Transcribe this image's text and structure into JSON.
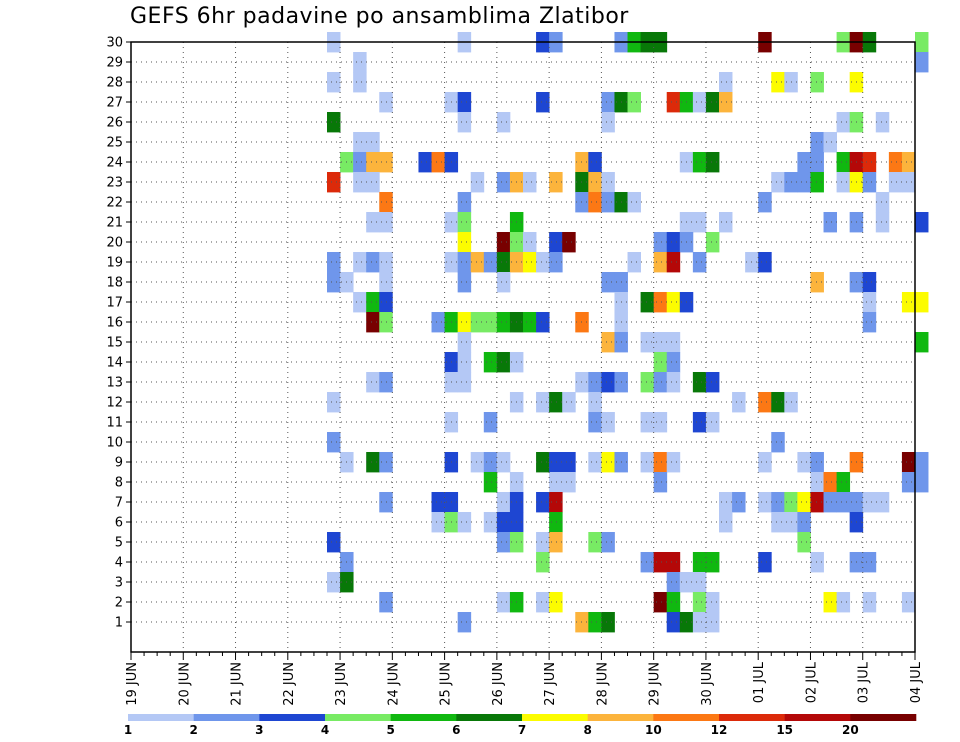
{
  "chart_data": {
    "type": "heatmap",
    "title": "GEFS 6hr padavine po ansamblima Zlatibor",
    "xlabel": "",
    "ylabel": "",
    "x_ticks": [
      "19 JUN",
      "20 JUN",
      "21 JUN",
      "22 JUN",
      "23 JUN",
      "24 JUN",
      "25 JUN",
      "26 JUN",
      "27 JUN",
      "28 JUN",
      "29 JUN",
      "30 JUN",
      "01 JUL",
      "02 JUL",
      "03 JUL",
      "04 JUL"
    ],
    "y_ticks": [
      "1",
      "2",
      "3",
      "4",
      "5",
      "6",
      "7",
      "8",
      "9",
      "10",
      "11",
      "12",
      "13",
      "14",
      "15",
      "16",
      "17",
      "18",
      "19",
      "20",
      "21",
      "22",
      "23",
      "24",
      "25",
      "26",
      "27",
      "28",
      "29",
      "30"
    ],
    "xlim": [
      "19 JUN 00",
      "04 JUL 00"
    ],
    "ylim": [
      0,
      30
    ],
    "x_step": "6 hours",
    "grid": true,
    "legend": {
      "placement": "bottom",
      "labels": [
        "1",
        "2",
        "3",
        "4",
        "5",
        "6",
        "7",
        "8",
        "10",
        "12",
        "15",
        "20"
      ],
      "colors": [
        "#b4c8f5",
        "#6f96eb",
        "#1e46d2",
        "#78eb64",
        "#10b810",
        "#087808",
        "#fcfc00",
        "#fcb43c",
        "#fc7814",
        "#dc2a0a",
        "#b40808",
        "#780000"
      ]
    },
    "cells_note": "each cell: [hours after 19 JUN 00, member, class index into legend.colors]",
    "cells": [
      [
        90,
        30,
        0
      ],
      [
        150,
        30,
        0
      ],
      [
        186,
        30,
        2
      ],
      [
        192,
        30,
        1
      ],
      [
        222,
        30,
        1
      ],
      [
        228,
        30,
        4
      ],
      [
        234,
        30,
        5
      ],
      [
        240,
        30,
        5
      ],
      [
        288,
        30,
        11
      ],
      [
        324,
        30,
        3
      ],
      [
        330,
        30,
        11
      ],
      [
        336,
        30,
        5
      ],
      [
        360,
        30,
        3
      ],
      [
        102,
        29,
        0
      ],
      [
        360,
        29,
        1
      ],
      [
        90,
        28,
        0
      ],
      [
        102,
        28,
        0
      ],
      [
        270,
        28,
        0
      ],
      [
        294,
        28,
        6
      ],
      [
        300,
        28,
        0
      ],
      [
        312,
        28,
        3
      ],
      [
        330,
        28,
        6
      ],
      [
        114,
        27,
        0
      ],
      [
        144,
        27,
        0
      ],
      [
        150,
        27,
        2
      ],
      [
        186,
        27,
        2
      ],
      [
        216,
        27,
        1
      ],
      [
        222,
        27,
        5
      ],
      [
        228,
        27,
        3
      ],
      [
        246,
        27,
        9
      ],
      [
        252,
        27,
        4
      ],
      [
        258,
        27,
        0
      ],
      [
        264,
        27,
        5
      ],
      [
        270,
        27,
        7
      ],
      [
        90,
        26,
        5
      ],
      [
        150,
        26,
        0
      ],
      [
        168,
        26,
        0
      ],
      [
        216,
        26,
        0
      ],
      [
        324,
        26,
        0
      ],
      [
        330,
        26,
        3
      ],
      [
        342,
        26,
        0
      ],
      [
        102,
        25,
        0
      ],
      [
        108,
        25,
        0
      ],
      [
        312,
        25,
        1
      ],
      [
        318,
        25,
        0
      ],
      [
        96,
        24,
        3
      ],
      [
        102,
        24,
        1
      ],
      [
        108,
        24,
        7
      ],
      [
        114,
        24,
        7
      ],
      [
        132,
        24,
        2
      ],
      [
        138,
        24,
        8
      ],
      [
        144,
        24,
        2
      ],
      [
        204,
        24,
        7
      ],
      [
        210,
        24,
        2
      ],
      [
        252,
        24,
        0
      ],
      [
        258,
        24,
        4
      ],
      [
        264,
        24,
        5
      ],
      [
        306,
        24,
        1
      ],
      [
        312,
        24,
        1
      ],
      [
        324,
        24,
        4
      ],
      [
        330,
        24,
        10
      ],
      [
        336,
        24,
        9
      ],
      [
        348,
        24,
        8
      ],
      [
        354,
        24,
        7
      ],
      [
        90,
        23,
        9
      ],
      [
        102,
        23,
        0
      ],
      [
        108,
        23,
        0
      ],
      [
        156,
        23,
        0
      ],
      [
        168,
        23,
        1
      ],
      [
        174,
        23,
        7
      ],
      [
        180,
        23,
        0
      ],
      [
        192,
        23,
        7
      ],
      [
        204,
        23,
        5
      ],
      [
        210,
        23,
        7
      ],
      [
        216,
        23,
        0
      ],
      [
        294,
        23,
        0
      ],
      [
        300,
        23,
        1
      ],
      [
        306,
        23,
        1
      ],
      [
        312,
        23,
        4
      ],
      [
        324,
        23,
        0
      ],
      [
        330,
        23,
        6
      ],
      [
        336,
        23,
        1
      ],
      [
        348,
        23,
        0
      ],
      [
        354,
        23,
        0
      ],
      [
        114,
        22,
        8
      ],
      [
        150,
        22,
        1
      ],
      [
        204,
        22,
        1
      ],
      [
        210,
        22,
        8
      ],
      [
        216,
        22,
        1
      ],
      [
        222,
        22,
        5
      ],
      [
        228,
        22,
        0
      ],
      [
        288,
        22,
        1
      ],
      [
        342,
        22,
        0
      ],
      [
        108,
        21,
        0
      ],
      [
        114,
        21,
        0
      ],
      [
        144,
        21,
        0
      ],
      [
        150,
        21,
        3
      ],
      [
        174,
        21,
        4
      ],
      [
        252,
        21,
        0
      ],
      [
        258,
        21,
        0
      ],
      [
        270,
        21,
        0
      ],
      [
        318,
        21,
        1
      ],
      [
        330,
        21,
        1
      ],
      [
        342,
        21,
        0
      ],
      [
        360,
        21,
        2
      ],
      [
        150,
        20,
        6
      ],
      [
        168,
        20,
        11
      ],
      [
        174,
        20,
        3
      ],
      [
        180,
        20,
        0
      ],
      [
        192,
        20,
        2
      ],
      [
        198,
        20,
        11
      ],
      [
        240,
        20,
        1
      ],
      [
        246,
        20,
        2
      ],
      [
        252,
        20,
        1
      ],
      [
        264,
        20,
        3
      ],
      [
        90,
        19,
        1
      ],
      [
        102,
        19,
        0
      ],
      [
        108,
        19,
        1
      ],
      [
        114,
        19,
        0
      ],
      [
        144,
        19,
        0
      ],
      [
        150,
        19,
        1
      ],
      [
        156,
        19,
        7
      ],
      [
        162,
        19,
        1
      ],
      [
        168,
        19,
        5
      ],
      [
        174,
        19,
        7
      ],
      [
        180,
        19,
        6
      ],
      [
        186,
        19,
        0
      ],
      [
        192,
        19,
        1
      ],
      [
        228,
        19,
        0
      ],
      [
        240,
        19,
        7
      ],
      [
        246,
        19,
        10
      ],
      [
        258,
        19,
        1
      ],
      [
        282,
        19,
        0
      ],
      [
        288,
        19,
        2
      ],
      [
        90,
        18,
        1
      ],
      [
        96,
        18,
        0
      ],
      [
        114,
        18,
        0
      ],
      [
        150,
        18,
        1
      ],
      [
        168,
        18,
        0
      ],
      [
        216,
        18,
        1
      ],
      [
        222,
        18,
        1
      ],
      [
        312,
        18,
        7
      ],
      [
        330,
        18,
        1
      ],
      [
        336,
        18,
        2
      ],
      [
        102,
        17,
        0
      ],
      [
        108,
        17,
        4
      ],
      [
        114,
        17,
        2
      ],
      [
        222,
        17,
        0
      ],
      [
        234,
        17,
        5
      ],
      [
        240,
        17,
        8
      ],
      [
        246,
        17,
        6
      ],
      [
        252,
        17,
        2
      ],
      [
        336,
        17,
        0
      ],
      [
        354,
        17,
        6
      ],
      [
        360,
        17,
        6
      ],
      [
        108,
        16,
        11
      ],
      [
        114,
        16,
        3
      ],
      [
        138,
        16,
        1
      ],
      [
        144,
        16,
        4
      ],
      [
        150,
        16,
        6
      ],
      [
        156,
        16,
        3
      ],
      [
        162,
        16,
        3
      ],
      [
        168,
        16,
        4
      ],
      [
        174,
        16,
        5
      ],
      [
        180,
        16,
        4
      ],
      [
        186,
        16,
        2
      ],
      [
        204,
        16,
        8
      ],
      [
        222,
        16,
        0
      ],
      [
        336,
        16,
        1
      ],
      [
        150,
        15,
        0
      ],
      [
        216,
        15,
        7
      ],
      [
        222,
        15,
        1
      ],
      [
        234,
        15,
        0
      ],
      [
        240,
        15,
        0
      ],
      [
        246,
        15,
        0
      ],
      [
        360,
        15,
        4
      ],
      [
        144,
        14,
        2
      ],
      [
        150,
        14,
        0
      ],
      [
        162,
        14,
        4
      ],
      [
        168,
        14,
        5
      ],
      [
        174,
        14,
        0
      ],
      [
        240,
        14,
        3
      ],
      [
        246,
        14,
        1
      ],
      [
        108,
        13,
        0
      ],
      [
        114,
        13,
        1
      ],
      [
        144,
        13,
        0
      ],
      [
        150,
        13,
        0
      ],
      [
        204,
        13,
        0
      ],
      [
        210,
        13,
        1
      ],
      [
        216,
        13,
        2
      ],
      [
        222,
        13,
        1
      ],
      [
        234,
        13,
        3
      ],
      [
        240,
        13,
        1
      ],
      [
        246,
        13,
        0
      ],
      [
        258,
        13,
        5
      ],
      [
        264,
        13,
        2
      ],
      [
        90,
        12,
        0
      ],
      [
        174,
        12,
        0
      ],
      [
        186,
        12,
        0
      ],
      [
        192,
        12,
        5
      ],
      [
        198,
        12,
        0
      ],
      [
        210,
        12,
        0
      ],
      [
        276,
        12,
        0
      ],
      [
        288,
        12,
        8
      ],
      [
        294,
        12,
        5
      ],
      [
        300,
        12,
        0
      ],
      [
        144,
        11,
        0
      ],
      [
        162,
        11,
        1
      ],
      [
        210,
        11,
        1
      ],
      [
        216,
        11,
        0
      ],
      [
        234,
        11,
        0
      ],
      [
        240,
        11,
        0
      ],
      [
        258,
        11,
        2
      ],
      [
        264,
        11,
        0
      ],
      [
        90,
        10,
        1
      ],
      [
        294,
        10,
        1
      ],
      [
        96,
        9,
        0
      ],
      [
        108,
        9,
        5
      ],
      [
        114,
        9,
        1
      ],
      [
        144,
        9,
        2
      ],
      [
        156,
        9,
        0
      ],
      [
        162,
        9,
        1
      ],
      [
        168,
        9,
        0
      ],
      [
        186,
        9,
        5
      ],
      [
        192,
        9,
        2
      ],
      [
        198,
        9,
        2
      ],
      [
        210,
        9,
        0
      ],
      [
        216,
        9,
        6
      ],
      [
        222,
        9,
        1
      ],
      [
        234,
        9,
        0
      ],
      [
        240,
        9,
        8
      ],
      [
        246,
        9,
        0
      ],
      [
        288,
        9,
        0
      ],
      [
        306,
        9,
        0
      ],
      [
        312,
        9,
        1
      ],
      [
        330,
        9,
        8
      ],
      [
        354,
        9,
        11
      ],
      [
        360,
        9,
        1
      ],
      [
        162,
        8,
        4
      ],
      [
        174,
        8,
        0
      ],
      [
        192,
        8,
        0
      ],
      [
        198,
        8,
        0
      ],
      [
        240,
        8,
        1
      ],
      [
        312,
        8,
        0
      ],
      [
        318,
        8,
        8
      ],
      [
        324,
        8,
        4
      ],
      [
        354,
        8,
        1
      ],
      [
        360,
        8,
        1
      ],
      [
        114,
        7,
        1
      ],
      [
        138,
        7,
        2
      ],
      [
        144,
        7,
        2
      ],
      [
        168,
        7,
        0
      ],
      [
        174,
        7,
        2
      ],
      [
        186,
        7,
        2
      ],
      [
        192,
        7,
        10
      ],
      [
        270,
        7,
        0
      ],
      [
        276,
        7,
        1
      ],
      [
        288,
        7,
        0
      ],
      [
        294,
        7,
        1
      ],
      [
        300,
        7,
        3
      ],
      [
        306,
        7,
        6
      ],
      [
        312,
        7,
        10
      ],
      [
        318,
        7,
        1
      ],
      [
        324,
        7,
        1
      ],
      [
        330,
        7,
        1
      ],
      [
        336,
        7,
        0
      ],
      [
        342,
        7,
        0
      ],
      [
        138,
        6,
        0
      ],
      [
        144,
        6,
        3
      ],
      [
        150,
        6,
        0
      ],
      [
        162,
        6,
        0
      ],
      [
        168,
        6,
        2
      ],
      [
        174,
        6,
        2
      ],
      [
        192,
        6,
        4
      ],
      [
        270,
        6,
        0
      ],
      [
        294,
        6,
        0
      ],
      [
        300,
        6,
        0
      ],
      [
        306,
        6,
        1
      ],
      [
        330,
        6,
        2
      ],
      [
        90,
        5,
        2
      ],
      [
        168,
        5,
        1
      ],
      [
        174,
        5,
        3
      ],
      [
        186,
        5,
        0
      ],
      [
        192,
        5,
        7
      ],
      [
        210,
        5,
        3
      ],
      [
        216,
        5,
        1
      ],
      [
        306,
        5,
        3
      ],
      [
        96,
        4,
        1
      ],
      [
        186,
        4,
        3
      ],
      [
        234,
        4,
        1
      ],
      [
        240,
        4,
        10
      ],
      [
        246,
        4,
        10
      ],
      [
        258,
        4,
        4
      ],
      [
        264,
        4,
        4
      ],
      [
        288,
        4,
        2
      ],
      [
        312,
        4,
        0
      ],
      [
        330,
        4,
        1
      ],
      [
        336,
        4,
        1
      ],
      [
        90,
        3,
        0
      ],
      [
        96,
        3,
        5
      ],
      [
        246,
        3,
        1
      ],
      [
        252,
        3,
        0
      ],
      [
        258,
        3,
        0
      ],
      [
        114,
        2,
        1
      ],
      [
        168,
        2,
        0
      ],
      [
        174,
        2,
        4
      ],
      [
        186,
        2,
        0
      ],
      [
        192,
        2,
        6
      ],
      [
        240,
        2,
        11
      ],
      [
        246,
        2,
        4
      ],
      [
        258,
        2,
        3
      ],
      [
        264,
        2,
        0
      ],
      [
        318,
        2,
        6
      ],
      [
        324,
        2,
        0
      ],
      [
        336,
        2,
        0
      ],
      [
        354,
        2,
        0
      ],
      [
        150,
        1,
        1
      ],
      [
        204,
        1,
        7
      ],
      [
        210,
        1,
        4
      ],
      [
        216,
        1,
        5
      ],
      [
        246,
        1,
        2
      ],
      [
        252,
        1,
        5
      ],
      [
        258,
        1,
        0
      ],
      [
        264,
        1,
        0
      ]
    ]
  }
}
